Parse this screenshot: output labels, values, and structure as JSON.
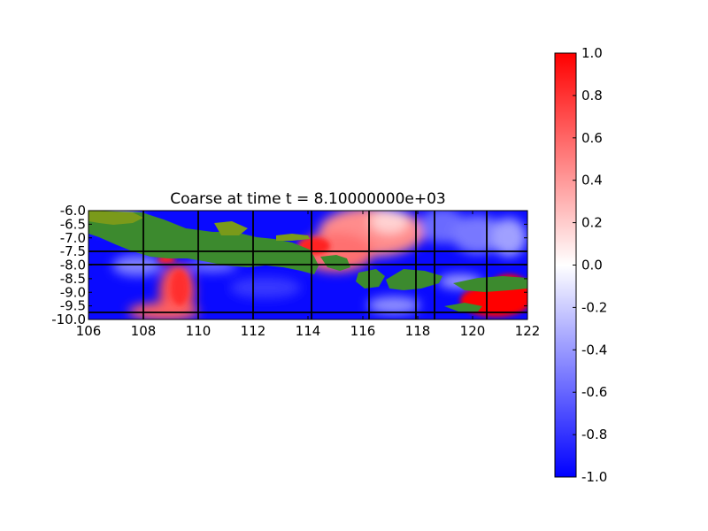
{
  "figure": {
    "title": "Coarse at time t = 8.10000000e+03"
  },
  "chart_data": {
    "type": "heatmap",
    "title": "Coarse at time t = 8.10000000e+03",
    "xlabel": "",
    "ylabel": "",
    "xlim": [
      106,
      122
    ],
    "ylim": [
      -10.0,
      -6.0
    ],
    "xticks": [
      "106",
      "108",
      "110",
      "112",
      "114",
      "116",
      "118",
      "120",
      "122"
    ],
    "yticks": [
      "-6.0",
      "-6.5",
      "-7.0",
      "-7.5",
      "-8.0",
      "-8.5",
      "-9.0",
      "-9.5",
      "-10.0"
    ],
    "colorbar": {
      "range": [
        -1.0,
        1.0
      ],
      "ticks": [
        "1.0",
        "0.8",
        "0.6",
        "0.4",
        "0.2",
        "0.0",
        "-0.2",
        "-0.4",
        "-0.6",
        "-0.8",
        "-1.0"
      ],
      "colormap": [
        "#0000ff",
        "#ffffff",
        "#ff0000"
      ]
    },
    "land_color": "#3c8a2e",
    "highland_color": "#7a9a1a",
    "grid_lines": {
      "x": [
        108,
        110,
        112,
        114.1,
        116.2,
        117.9,
        118.6,
        120.5
      ],
      "y": [
        -7.55,
        -8.0,
        -9.8
      ]
    },
    "grid": true
  }
}
